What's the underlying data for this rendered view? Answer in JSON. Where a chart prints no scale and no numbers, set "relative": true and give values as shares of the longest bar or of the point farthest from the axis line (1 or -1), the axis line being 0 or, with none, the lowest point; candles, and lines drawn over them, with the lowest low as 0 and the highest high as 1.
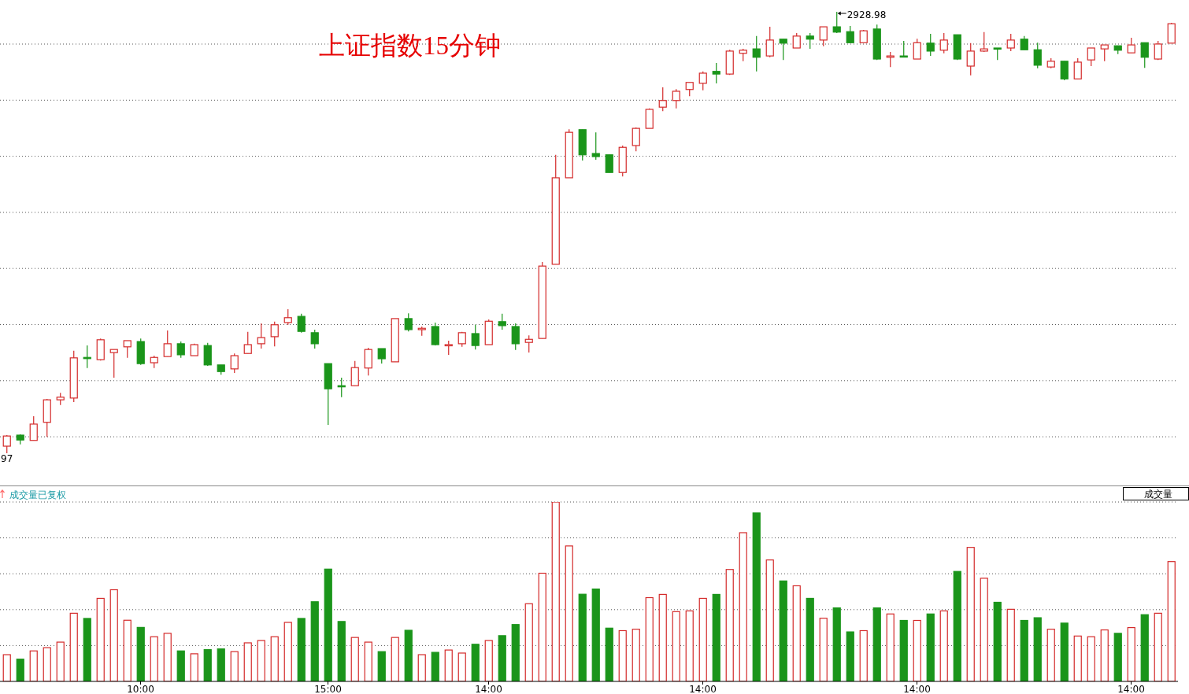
{
  "chart_data": [
    {
      "type": "candlestick",
      "title": "上证指数15分钟",
      "relative": true,
      "grid": "y",
      "tick_labels": false,
      "annotations": [
        "2928.98",
        "97"
      ],
      "categories": [
        null,
        null,
        null,
        null,
        null,
        null,
        null,
        null,
        null,
        null,
        null,
        null,
        null,
        null,
        null,
        null,
        null,
        null,
        null,
        null,
        null,
        null,
        null,
        null,
        null,
        null,
        null,
        null,
        null,
        null,
        null,
        null,
        null,
        null,
        null,
        null,
        null,
        null,
        null,
        null,
        null,
        null,
        null,
        null,
        null,
        null,
        null,
        null,
        null,
        null,
        null,
        null,
        null,
        null,
        null,
        null,
        null,
        null,
        null,
        null,
        null,
        null,
        null,
        null,
        null,
        null,
        null,
        null,
        null,
        null,
        null,
        null,
        null,
        null,
        null,
        null,
        null,
        null,
        null,
        null,
        null,
        null,
        null,
        null,
        null,
        null,
        null,
        null
      ],
      "ohlc": [
        [
          0.016,
          0.041,
          0,
          0.039
        ],
        [
          0.041,
          0.043,
          0.02,
          0.03
        ],
        [
          0.029,
          0.084,
          0.029,
          0.066
        ],
        [
          0.07,
          0.123,
          0.037,
          0.121
        ],
        [
          0.121,
          0.137,
          0.109,
          0.127
        ],
        [
          0.125,
          0.232,
          0.116,
          0.216
        ],
        [
          0.217,
          0.244,
          0.193,
          0.216
        ],
        [
          0.212,
          0.26,
          0.21,
          0.257
        ],
        [
          0.228,
          0.235,
          0.171,
          0.235
        ],
        [
          0.241,
          0.255,
          0.216,
          0.255
        ],
        [
          0.253,
          0.26,
          0.2,
          0.203
        ],
        [
          0.205,
          0.221,
          0.193,
          0.217
        ],
        [
          0.219,
          0.278,
          0.219,
          0.248
        ],
        [
          0.248,
          0.253,
          0.216,
          0.223
        ],
        [
          0.221,
          0.248,
          0.221,
          0.246
        ],
        [
          0.244,
          0.25,
          0.198,
          0.2
        ],
        [
          0.2,
          0.2,
          0.178,
          0.185
        ],
        [
          0.191,
          0.226,
          0.182,
          0.221
        ],
        [
          0.226,
          0.275,
          0.226,
          0.246
        ],
        [
          0.248,
          0.294,
          0.237,
          0.262
        ],
        [
          0.264,
          0.298,
          0.242,
          0.291
        ],
        [
          0.296,
          0.326,
          0.291,
          0.307
        ],
        [
          0.31,
          0.316,
          0.273,
          0.276
        ],
        [
          0.273,
          0.28,
          0.237,
          0.248
        ],
        [
          0.203,
          0.203,
          0.064,
          0.146
        ],
        [
          0.153,
          0.171,
          0.127,
          0.152
        ],
        [
          0.153,
          0.209,
          0.153,
          0.194
        ],
        [
          0.193,
          0.239,
          0.176,
          0.235
        ],
        [
          0.237,
          0.237,
          0.203,
          0.214
        ],
        [
          0.207,
          0.305,
          0.207,
          0.305
        ],
        [
          0.305,
          0.317,
          0.276,
          0.28
        ],
        [
          0.28,
          0.287,
          0.266,
          0.283
        ],
        [
          0.287,
          0.296,
          0.244,
          0.246
        ],
        [
          0.244,
          0.255,
          0.223,
          0.246
        ],
        [
          0.248,
          0.275,
          0.241,
          0.273
        ],
        [
          0.271,
          0.291,
          0.235,
          0.244
        ],
        [
          0.246,
          0.303,
          0.246,
          0.299
        ],
        [
          0.298,
          0.316,
          0.28,
          0.289
        ],
        [
          0.287,
          0.294,
          0.234,
          0.248
        ],
        [
          0.251,
          0.267,
          0.228,
          0.258
        ],
        [
          0.26,
          0.433,
          0.26,
          0.424
        ],
        [
          0.428,
          0.676,
          0.428,
          0.624
        ],
        [
          0.624,
          0.734,
          0.624,
          0.727
        ],
        [
          0.733,
          0.733,
          0.663,
          0.676
        ],
        [
          0.679,
          0.727,
          0.665,
          0.672
        ],
        [
          0.676,
          0.676,
          0.636,
          0.636
        ],
        [
          0.636,
          0.697,
          0.627,
          0.693
        ],
        [
          0.697,
          0.738,
          0.684,
          0.736
        ],
        [
          0.736,
          0.781,
          0.736,
          0.779
        ],
        [
          0.784,
          0.829,
          0.775,
          0.799
        ],
        [
          0.799,
          0.825,
          0.781,
          0.82
        ],
        [
          0.824,
          0.84,
          0.809,
          0.84
        ],
        [
          0.838,
          0.865,
          0.822,
          0.861
        ],
        [
          0.865,
          0.884,
          0.838,
          0.859
        ],
        [
          0.859,
          0.914,
          0.857,
          0.911
        ],
        [
          0.906,
          0.916,
          0.888,
          0.913
        ],
        [
          0.916,
          0.945,
          0.865,
          0.897
        ],
        [
          0.9,
          0.966,
          0.897,
          0.936
        ],
        [
          0.938,
          0.938,
          0.891,
          0.929
        ],
        [
          0.918,
          0.952,
          0.918,
          0.945
        ],
        [
          0.945,
          0.952,
          0.916,
          0.938
        ],
        [
          0.936,
          0.966,
          0.922,
          0.966
        ],
        [
          0.966,
          1,
          0.952,
          0.954
        ],
        [
          0.955,
          0.968,
          0.929,
          0.93
        ],
        [
          0.93,
          0.959,
          0.93,
          0.957
        ],
        [
          0.961,
          0.971,
          0.891,
          0.893
        ],
        [
          0.897,
          0.909,
          0.875,
          0.9
        ],
        [
          0.9,
          0.934,
          0.898,
          0.898
        ],
        [
          0.893,
          0.939,
          0.893,
          0.93
        ],
        [
          0.929,
          0.95,
          0.9,
          0.911
        ],
        [
          0.913,
          0.952,
          0.906,
          0.936
        ],
        [
          0.948,
          0.948,
          0.891,
          0.893
        ],
        [
          0.877,
          0.929,
          0.856,
          0.911
        ],
        [
          0.911,
          0.954,
          0.909,
          0.916
        ],
        [
          0.918,
          0.918,
          0.891,
          0.916
        ],
        [
          0.918,
          0.95,
          0.911,
          0.936
        ],
        [
          0.938,
          0.945,
          0.914,
          0.914
        ],
        [
          0.914,
          0.93,
          0.872,
          0.879
        ],
        [
          0.875,
          0.895,
          0.872,
          0.888
        ],
        [
          0.888,
          0.888,
          0.845,
          0.848
        ],
        [
          0.848,
          0.895,
          0.848,
          0.886
        ],
        [
          0.891,
          0.918,
          0.877,
          0.918
        ],
        [
          0.916,
          0.925,
          0.888,
          0.925
        ],
        [
          0.923,
          0.923,
          0.904,
          0.913
        ],
        [
          0.907,
          0.941,
          0.907,
          0.925
        ],
        [
          0.93,
          0.93,
          0.873,
          0.897
        ],
        [
          0.893,
          0.934,
          0.891,
          0.927
        ],
        [
          0.929,
          0.975,
          0.929,
          0.973
        ]
      ],
      "colors": [
        "#d42a2a",
        "#1a951a",
        "#d42a2a",
        "#d42a2a",
        "#d42a2a",
        "#d42a2a",
        "#1a951a",
        "#d42a2a",
        "#d42a2a",
        "#d42a2a",
        "#1a951a",
        "#d42a2a",
        "#d42a2a",
        "#1a951a",
        "#d42a2a",
        "#1a951a",
        "#1a951a",
        "#d42a2a",
        "#d42a2a",
        "#d42a2a",
        "#d42a2a",
        "#d42a2a",
        "#1a951a",
        "#1a951a",
        "#1a951a",
        "#1a951a",
        "#d42a2a",
        "#d42a2a",
        "#1a951a",
        "#d42a2a",
        "#1a951a",
        "#d42a2a",
        "#1a951a",
        "#d42a2a",
        "#d42a2a",
        "#1a951a",
        "#d42a2a",
        "#1a951a",
        "#1a951a",
        "#d42a2a",
        "#d42a2a",
        "#d42a2a",
        "#d42a2a",
        "#1a951a",
        "#1a951a",
        "#1a951a",
        "#d42a2a",
        "#d42a2a",
        "#d42a2a",
        "#d42a2a",
        "#d42a2a",
        "#d42a2a",
        "#d42a2a",
        "#1a951a",
        "#d42a2a",
        "#d42a2a",
        "#1a951a",
        "#d42a2a",
        "#1a951a",
        "#d42a2a",
        "#1a951a",
        "#d42a2a",
        "#1a951a",
        "#1a951a",
        "#d42a2a",
        "#1a951a",
        "#d42a2a",
        "#1a951a",
        "#d42a2a",
        "#1a951a",
        "#d42a2a",
        "#1a951a",
        "#d42a2a",
        "#d42a2a",
        "#1a951a",
        "#d42a2a",
        "#1a951a",
        "#1a951a",
        "#d42a2a",
        "#1a951a",
        "#d42a2a",
        "#d42a2a",
        "#d42a2a",
        "#1a951a",
        "#d42a2a",
        "#1a951a",
        "#d42a2a",
        "#d42a2a"
      ]
    },
    {
      "type": "bar",
      "title": "成交量已复权",
      "relative": true,
      "grid": "y",
      "tick_labels": "x",
      "annotations": [
        "成交量"
      ],
      "categories": [
        null,
        null,
        null,
        null,
        null,
        null,
        null,
        null,
        null,
        null,
        "10:00",
        null,
        null,
        null,
        null,
        null,
        null,
        null,
        null,
        null,
        null,
        null,
        null,
        null,
        "15:00",
        null,
        null,
        null,
        null,
        null,
        null,
        null,
        null,
        null,
        null,
        null,
        "14:00",
        null,
        null,
        null,
        null,
        null,
        null,
        null,
        null,
        null,
        null,
        null,
        null,
        null,
        null,
        null,
        "14:00",
        null,
        null,
        null,
        null,
        null,
        null,
        null,
        null,
        null,
        null,
        null,
        null,
        null,
        null,
        null,
        "14:00",
        null,
        null,
        null,
        null,
        null,
        null,
        null,
        null,
        null,
        null,
        null,
        null,
        null,
        null,
        null,
        "14:00",
        null,
        null,
        null
      ],
      "values": [
        0.149,
        0.124,
        0.17,
        0.188,
        0.219,
        0.38,
        0.351,
        0.463,
        0.511,
        0.341,
        0.301,
        0.249,
        0.268,
        0.17,
        0.154,
        0.177,
        0.181,
        0.166,
        0.215,
        0.228,
        0.249,
        0.329,
        0.351,
        0.444,
        0.626,
        0.334,
        0.245,
        0.219,
        0.166,
        0.245,
        0.285,
        0.149,
        0.162,
        0.175,
        0.158,
        0.207,
        0.228,
        0.255,
        0.317,
        0.433,
        0.603,
        1,
        0.755,
        0.486,
        0.515,
        0.297,
        0.283,
        0.291,
        0.467,
        0.485,
        0.389,
        0.393,
        0.463,
        0.485,
        0.624,
        0.829,
        0.939,
        0.677,
        0.56,
        0.533,
        0.463,
        0.352,
        0.41,
        0.276,
        0.283,
        0.41,
        0.376,
        0.34,
        0.34,
        0.376,
        0.393,
        0.613,
        0.747,
        0.575,
        0.441,
        0.402,
        0.34,
        0.355,
        0.291,
        0.325,
        0.253,
        0.249,
        0.287,
        0.268,
        0.3,
        0.372,
        0.38,
        0.668
      ],
      "colors": [
        "#d42a2a",
        "#1a951a",
        "#d42a2a",
        "#d42a2a",
        "#d42a2a",
        "#d42a2a",
        "#1a951a",
        "#d42a2a",
        "#d42a2a",
        "#d42a2a",
        "#1a951a",
        "#d42a2a",
        "#d42a2a",
        "#1a951a",
        "#d42a2a",
        "#1a951a",
        "#1a951a",
        "#d42a2a",
        "#d42a2a",
        "#d42a2a",
        "#d42a2a",
        "#d42a2a",
        "#1a951a",
        "#1a951a",
        "#1a951a",
        "#1a951a",
        "#d42a2a",
        "#d42a2a",
        "#1a951a",
        "#d42a2a",
        "#1a951a",
        "#d42a2a",
        "#1a951a",
        "#d42a2a",
        "#d42a2a",
        "#1a951a",
        "#d42a2a",
        "#1a951a",
        "#1a951a",
        "#d42a2a",
        "#d42a2a",
        "#d42a2a",
        "#d42a2a",
        "#1a951a",
        "#1a951a",
        "#1a951a",
        "#d42a2a",
        "#d42a2a",
        "#d42a2a",
        "#d42a2a",
        "#d42a2a",
        "#d42a2a",
        "#d42a2a",
        "#1a951a",
        "#d42a2a",
        "#d42a2a",
        "#1a951a",
        "#d42a2a",
        "#1a951a",
        "#d42a2a",
        "#1a951a",
        "#d42a2a",
        "#1a951a",
        "#1a951a",
        "#d42a2a",
        "#1a951a",
        "#d42a2a",
        "#1a951a",
        "#d42a2a",
        "#1a951a",
        "#d42a2a",
        "#1a951a",
        "#d42a2a",
        "#d42a2a",
        "#1a951a",
        "#d42a2a",
        "#1a951a",
        "#1a951a",
        "#d42a2a",
        "#1a951a",
        "#d42a2a",
        "#d42a2a",
        "#d42a2a",
        "#1a951a",
        "#d42a2a",
        "#1a951a",
        "#d42a2a",
        "#d42a2a"
      ]
    }
  ]
}
